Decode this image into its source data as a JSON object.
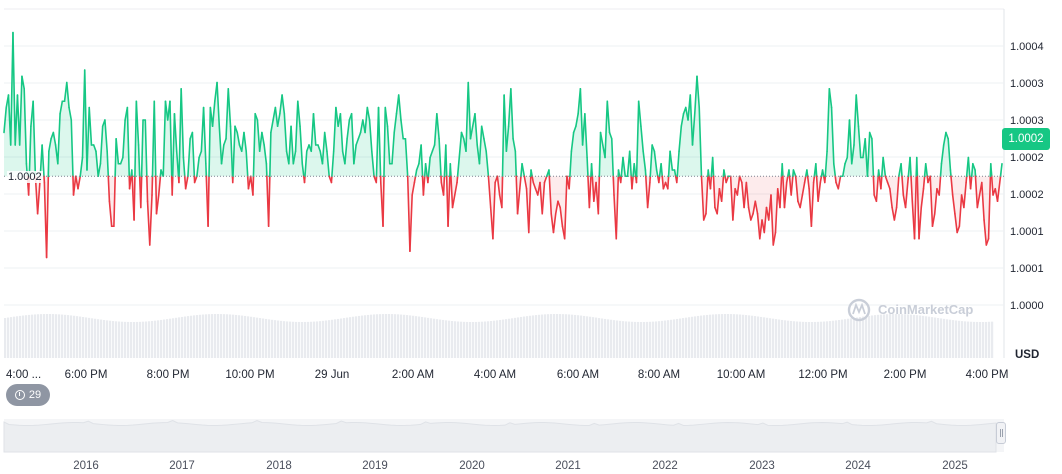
{
  "chart_data": {
    "type": "line",
    "currency": "USD",
    "reference_price": "1.0002",
    "current_price": "1.0002",
    "y_tick_labels": [
      "1.0004",
      "1.0003",
      "1.0003",
      "1.0002",
      "1.0002",
      "1.0001",
      "1.0001",
      "1.0000"
    ],
    "x_tick_labels": [
      "4:00 ...",
      "6:00 PM",
      "8:00 PM",
      "10:00 PM",
      "29 Jun",
      "2:00 AM",
      "4:00 AM",
      "6:00 AM",
      "8:00 AM",
      "10:00 AM",
      "12:00 PM",
      "2:00 PM",
      "4:00 PM"
    ],
    "navigator_labels": [
      "2016",
      "2017",
      "2018",
      "2019",
      "2020",
      "2021",
      "2022",
      "2023",
      "2024",
      "2025"
    ],
    "ylim": [
      0.99998,
      1.00046
    ],
    "baseline": 1.00021,
    "above_color": "#16c784",
    "below_color": "#ea3943",
    "series": [
      {
        "values": [
          1.00028,
          1.00032,
          1.00034,
          1.00026,
          1.00044,
          1.00026,
          1.00034,
          1.00026,
          1.00037,
          1.00035,
          1.00023,
          1.00018,
          1.00029,
          1.00033,
          1.00021,
          1.00015,
          1.0002,
          1.00026,
          1.0002,
          1.00008,
          1.00025,
          1.00027,
          1.00028,
          1.00026,
          1.00023,
          1.00031,
          1.00033,
          1.00033,
          1.00036,
          1.00032,
          1.0003,
          1.00018,
          1.00021,
          1.00019,
          1.00021,
          1.00024,
          1.00038,
          1.00022,
          1.00032,
          1.00026,
          1.00026,
          1.00025,
          1.00021,
          1.00023,
          1.00029,
          1.0003,
          1.00025,
          1.00017,
          1.00013,
          1.00013,
          1.00027,
          1.00023,
          1.00023,
          1.00024,
          1.0003,
          1.00032,
          1.00019,
          1.00022,
          1.00014,
          1.00033,
          1.00026,
          1.00016,
          1.0003,
          1.0003,
          1.00017,
          1.0001,
          1.00018,
          1.00033,
          1.00015,
          1.00018,
          1.00022,
          1.00021,
          1.00033,
          1.0003,
          1.00033,
          1.00018,
          1.00031,
          1.00025,
          1.0002,
          1.00035,
          1.00024,
          1.00019,
          1.00021,
          1.00027,
          1.00028,
          1.0002,
          1.00021,
          1.00024,
          1.00025,
          1.00032,
          1.00023,
          1.00013,
          1.00032,
          1.00029,
          1.00033,
          1.00036,
          1.00029,
          1.00023,
          1.00026,
          1.00027,
          1.00035,
          1.00029,
          1.0002,
          1.00029,
          1.00028,
          1.00026,
          1.00025,
          1.00028,
          1.00025,
          1.00019,
          1.00021,
          1.00018,
          1.00031,
          1.0003,
          1.00025,
          1.00028,
          1.00026,
          1.00023,
          1.00013,
          1.00028,
          1.0003,
          1.00032,
          1.00029,
          1.00031,
          1.00034,
          1.00031,
          1.00025,
          1.00023,
          1.00029,
          1.00023,
          1.00025,
          1.00033,
          1.00029,
          1.00023,
          1.0002,
          1.00025,
          1.00026,
          1.00025,
          1.00031,
          1.00026,
          1.00026,
          1.00025,
          1.00023,
          1.00028,
          1.00025,
          1.00021,
          1.0002,
          1.00025,
          1.00032,
          1.00029,
          1.00031,
          1.00025,
          1.00023,
          1.00027,
          1.0003,
          1.00031,
          1.00023,
          1.00026,
          1.00027,
          1.00028,
          1.0003,
          1.00028,
          1.00032,
          1.0003,
          1.00025,
          1.00021,
          1.0002,
          1.00032,
          1.0002,
          1.00013,
          1.00032,
          1.00029,
          1.00023,
          1.00023,
          1.00028,
          1.00031,
          1.00034,
          1.0003,
          1.00027,
          1.00027,
          1.00021,
          1.00009,
          1.00018,
          1.0002,
          1.00022,
          1.00023,
          1.00026,
          1.00018,
          1.00023,
          1.0002,
          1.00024,
          1.00025,
          1.00026,
          1.00031,
          1.00027,
          1.0002,
          1.00018,
          1.00026,
          1.00013,
          1.00023,
          1.00016,
          1.00018,
          1.0002,
          1.00024,
          1.00028,
          1.00027,
          1.00025,
          1.00036,
          1.00027,
          1.00029,
          1.00031,
          1.00026,
          1.00023,
          1.00029,
          1.00027,
          1.00025,
          1.00021,
          1.00016,
          1.00011,
          1.0002,
          1.00021,
          1.00018,
          1.00016,
          1.00034,
          1.00025,
          1.00029,
          1.00035,
          1.00027,
          1.00025,
          1.00015,
          1.00019,
          1.00023,
          1.00021,
          1.00019,
          1.00012,
          1.00022,
          1.0002,
          1.00019,
          1.00018,
          1.0002,
          1.00015,
          1.0002,
          1.00021,
          1.00022,
          1.00015,
          1.00012,
          1.00015,
          1.00017,
          1.00016,
          1.00013,
          1.00011,
          1.00021,
          1.00019,
          1.00025,
          1.00028,
          1.00029,
          1.00031,
          1.00035,
          1.00026,
          1.00031,
          1.00024,
          1.00016,
          1.00023,
          1.00017,
          1.0002,
          1.00015,
          1.00028,
          1.00026,
          1.00024,
          1.00033,
          1.00028,
          1.00027,
          1.00018,
          1.00011,
          1.00022,
          1.0002,
          1.00024,
          1.00021,
          1.00021,
          1.00025,
          1.00019,
          1.00023,
          1.0002,
          1.00033,
          1.00029,
          1.00025,
          1.00022,
          1.00016,
          1.0002,
          1.00026,
          1.00025,
          1.00022,
          1.0002,
          1.00023,
          1.00019,
          1.0002,
          1.00019,
          1.00025,
          1.00022,
          1.00022,
          1.0002,
          1.00025,
          1.00029,
          1.00031,
          1.00032,
          1.0003,
          1.00034,
          1.00026,
          1.00031,
          1.00037,
          1.00032,
          1.00021,
          1.00014,
          1.00015,
          1.00022,
          1.00019,
          1.00024,
          1.00016,
          1.00015,
          1.00019,
          1.00017,
          1.00022,
          1.0002,
          1.00021,
          1.00021,
          1.00014,
          1.00019,
          1.00018,
          1.00021,
          1.0002,
          1.00016,
          1.0002,
          1.00016,
          1.00014,
          1.00015,
          1.00017,
          1.00015,
          1.00011,
          1.00014,
          1.00012,
          1.00016,
          1.00014,
          1.00018,
          1.0001,
          1.00012,
          1.00019,
          1.00016,
          1.00023,
          1.00016,
          1.0002,
          1.00022,
          1.00018,
          1.00022,
          1.00021,
          1.00017,
          1.00016,
          1.00018,
          1.0002,
          1.00022,
          1.00019,
          1.00013,
          1.0002,
          1.00023,
          1.00017,
          1.0002,
          1.00022,
          1.0002,
          1.00025,
          1.00035,
          1.00032,
          1.00023,
          1.0002,
          1.00019,
          1.00021,
          1.00021,
          1.00023,
          1.00024,
          1.0003,
          1.00023,
          1.00026,
          1.00034,
          1.00029,
          1.00024,
          1.00024,
          1.00027,
          1.00021,
          1.00028,
          1.00027,
          1.00018,
          1.00017,
          1.00022,
          1.00019,
          1.00024,
          1.00021,
          1.0002,
          1.00019,
          1.00016,
          1.00014,
          1.00016,
          1.00021,
          1.00023,
          1.00018,
          1.00016,
          1.0002,
          1.00024,
          1.00017,
          1.00011,
          1.00024,
          1.00011,
          1.00016,
          1.00019,
          1.00023,
          1.0002,
          1.00021,
          1.00013,
          1.00015,
          1.00019,
          1.00018,
          1.00023,
          1.00026,
          1.00028,
          1.00027,
          1.00022,
          1.00018,
          1.00015,
          1.00012,
          1.00013,
          1.00018,
          1.00016,
          1.0002,
          1.00024,
          1.00019,
          1.00023,
          1.00022,
          1.00016,
          1.00018,
          1.0002,
          1.00014,
          1.0001,
          1.00011,
          1.00023,
          1.00018,
          1.00019,
          1.00017,
          1.0002,
          1.00023
        ]
      }
    ],
    "watermark": "CoinMarketCap"
  },
  "ui": {
    "events_badge_count": "29",
    "unit_label": "USD"
  }
}
